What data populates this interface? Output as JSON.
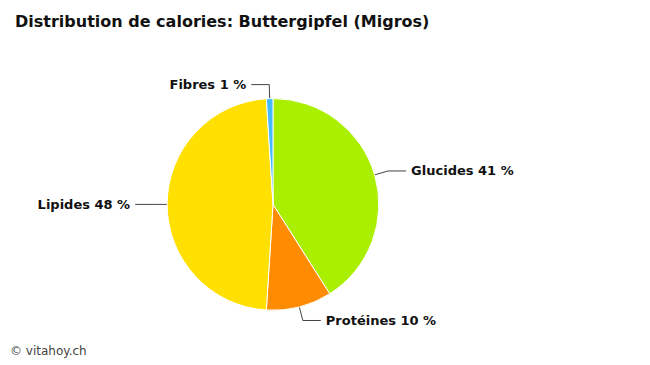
{
  "chart_data": {
    "type": "pie",
    "title": "Distribution de calories: Buttergipfel (Migros)",
    "categories": [
      "Glucides 41 %",
      "Protéines 10 %",
      "Lipides 48 %",
      "Fibres 1 %"
    ],
    "values": [
      41,
      10,
      48,
      1
    ],
    "colors": [
      "#AAEE00",
      "#FF8C00",
      "#FFE000",
      "#44BBFF"
    ],
    "annotations": [
      "© vitahoy.ch"
    ],
    "legend": false
  }
}
